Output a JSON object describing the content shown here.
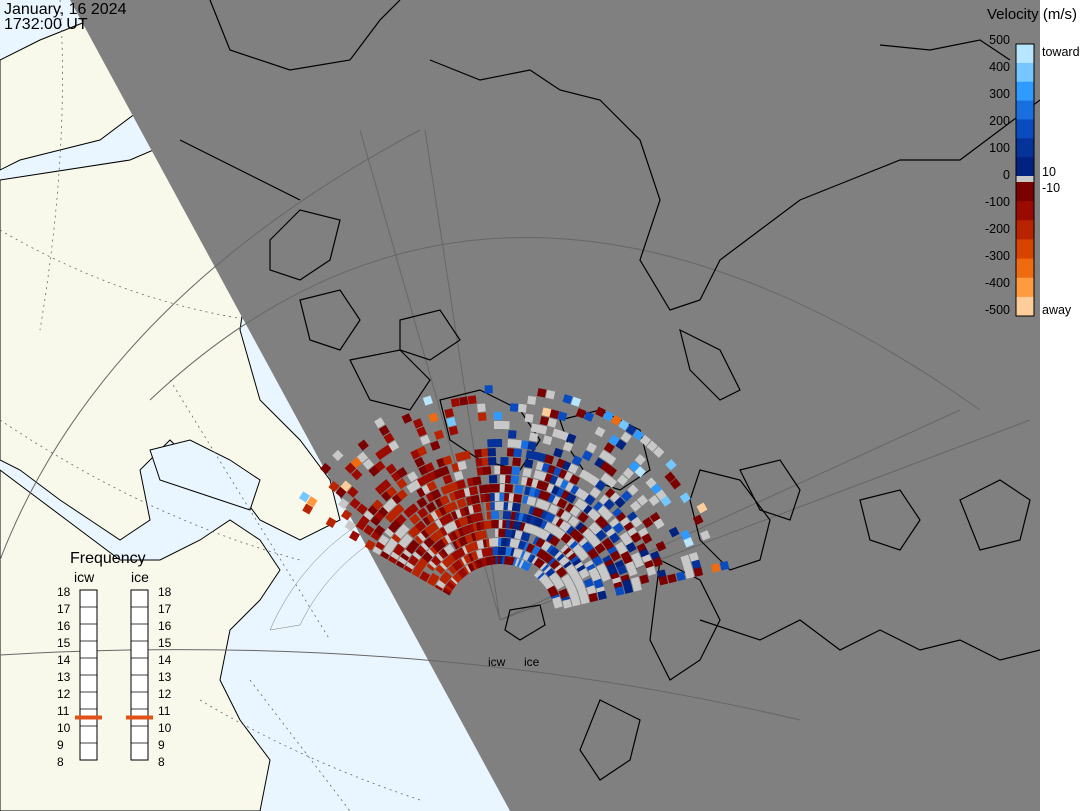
{
  "header": {
    "date": "January, 16 2024",
    "time": "1732:00 UT"
  },
  "colorbar": {
    "title": "Velocity (m/s)",
    "ticks_positive": [
      "500",
      "400",
      "300",
      "200",
      "100",
      "10",
      "0"
    ],
    "ticks_negative": [
      "-10",
      "-100",
      "-200",
      "-300",
      "-400",
      "-500"
    ],
    "toward_label": "toward",
    "away_label": "away",
    "toward_colors": [
      "#b8e6ff",
      "#74c8ff",
      "#2f9bff",
      "#1a6fe0",
      "#0a4bbf",
      "#05339a",
      "#022280"
    ],
    "away_colors": [
      "#7a0000",
      "#9a0a00",
      "#b82400",
      "#d64400",
      "#f06a10",
      "#ff9a40",
      "#ffcd99"
    ]
  },
  "frequency_panel": {
    "title": "Frequency",
    "radars": [
      {
        "name": "icw",
        "frequency_mhz": 10.5
      },
      {
        "name": "ice",
        "frequency_mhz": 10.5
      }
    ],
    "scale": [
      "18",
      "17",
      "16",
      "15",
      "14",
      "13",
      "12",
      "11",
      "10",
      "9",
      "8"
    ]
  },
  "radar_labels": [
    "icw",
    "ice"
  ],
  "map_colors": {
    "night": "#808080",
    "day_land": "#f9f9eb",
    "day_ocean": "#eaf6ff",
    "ground_scatter": "#c8c8c8",
    "coast": "#000000"
  }
}
